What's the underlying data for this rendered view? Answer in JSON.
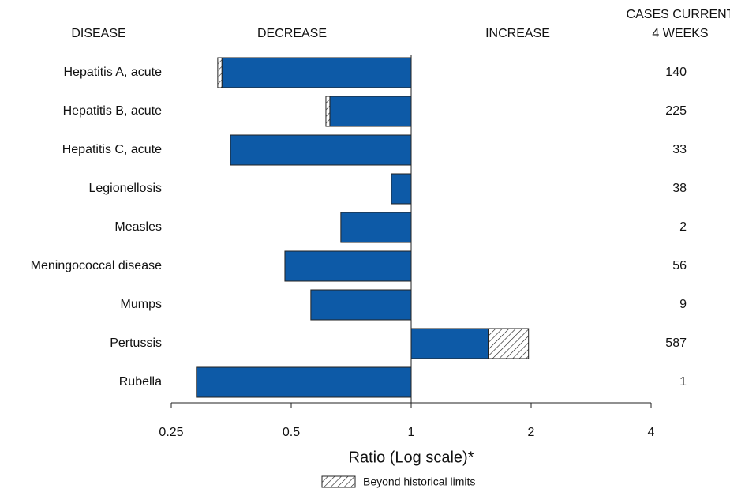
{
  "chart_data": {
    "type": "bar",
    "orientation": "horizontal",
    "headers": {
      "disease": "DISEASE",
      "decrease": "DECREASE",
      "increase": "INCREASE",
      "cases": [
        "CASES CURRENT",
        "4 WEEKS"
      ]
    },
    "categories": [
      "Hepatitis A, acute",
      "Hepatitis B, acute",
      "Hepatitis C, acute",
      "Legionellosis",
      "Measles",
      "Meningococcal disease",
      "Mumps",
      "Pertussis",
      "Rubella"
    ],
    "values": [
      0.327,
      0.611,
      0.352,
      0.892,
      0.666,
      0.482,
      0.56,
      1.97,
      0.289
    ],
    "historical_limits": [
      0.335,
      0.625,
      null,
      null,
      null,
      null,
      null,
      1.56,
      null
    ],
    "cases": [
      140,
      225,
      33,
      38,
      2,
      56,
      9,
      587,
      1
    ],
    "color": "#0d5aa7",
    "log_scale": true,
    "baseline": 1,
    "xlim": [
      0.25,
      4
    ],
    "xticks": [
      0.25,
      0.5,
      1,
      2,
      4
    ],
    "xlabel": "Ratio (Log scale)*",
    "legend": "Beyond historical limits"
  }
}
